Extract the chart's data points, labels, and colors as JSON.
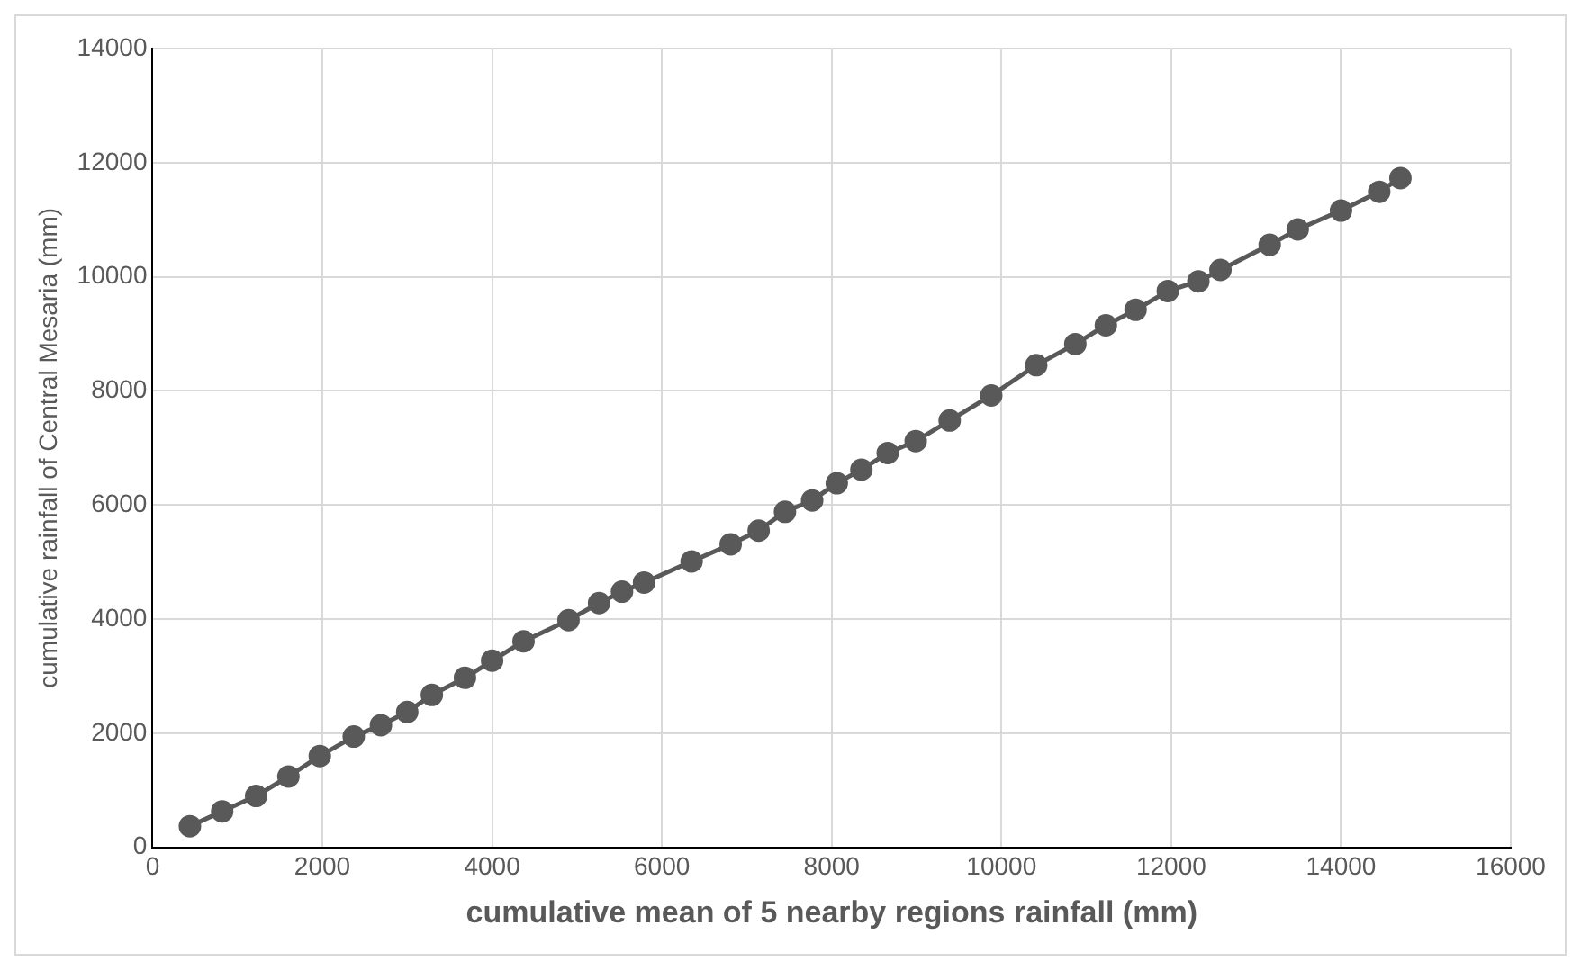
{
  "chart_data": {
    "type": "line",
    "xlabel": "cumulative mean of 5 nearby regions rainfall (mm)",
    "ylabel": "cumulative rainfall of Central Mesaria (mm)",
    "x": [
      440,
      820,
      1220,
      1600,
      1970,
      2370,
      2690,
      3000,
      3290,
      3680,
      4000,
      4370,
      4900,
      5260,
      5530,
      5790,
      6350,
      6810,
      7140,
      7450,
      7770,
      8060,
      8350,
      8660,
      8990,
      9390,
      9880,
      10410,
      10870,
      11230,
      11580,
      11960,
      12320,
      12580,
      13160,
      13490,
      14000,
      14450,
      14700
    ],
    "series": [
      {
        "color": "#595959",
        "values": [
          370,
          630,
          900,
          1240,
          1600,
          1940,
          2140,
          2370,
          2670,
          2970,
          3270,
          3610,
          3980,
          4280,
          4480,
          4640,
          5010,
          5310,
          5550,
          5880,
          6080,
          6380,
          6620,
          6910,
          7120,
          7480,
          7920,
          8450,
          8820,
          9150,
          9420,
          9750,
          9920,
          10120,
          10560,
          10830,
          11160,
          11490,
          11730
        ]
      }
    ],
    "xlim": [
      0,
      16000
    ],
    "xticks": [
      0,
      2000,
      4000,
      6000,
      8000,
      10000,
      12000,
      14000,
      16000
    ],
    "ylim": [
      0,
      14000
    ],
    "yticks": [
      0,
      2000,
      4000,
      6000,
      8000,
      10000,
      12000,
      14000
    ],
    "grid": true,
    "legend": false,
    "marker": "circle",
    "line_style": "solid"
  }
}
